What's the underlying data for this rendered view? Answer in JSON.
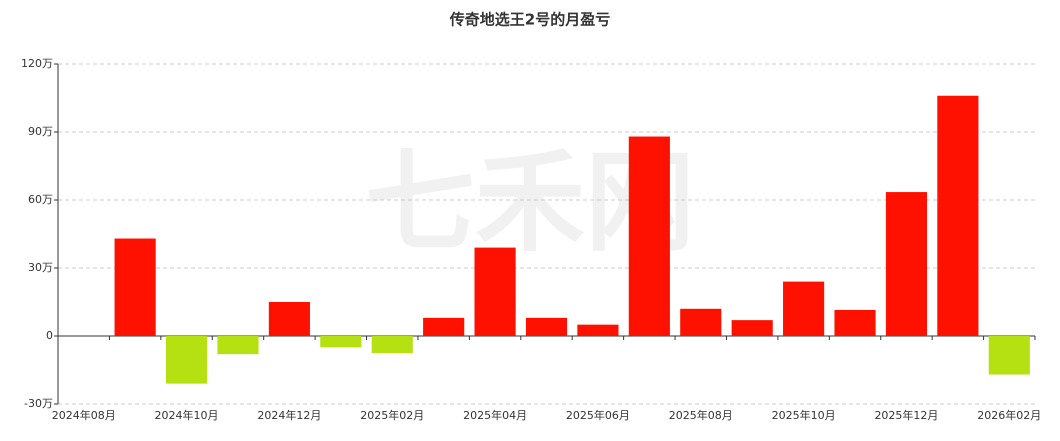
{
  "chart_data": {
    "type": "bar",
    "title": "传奇地选王2号的月盈亏",
    "watermark": "七禾网",
    "categories": [
      "2024年08月",
      null,
      "2024年10月",
      null,
      "2024年12月",
      null,
      "2025年02月",
      null,
      "2025年04月",
      null,
      "2025年06月",
      null,
      "2025年08月",
      null,
      "2025年10月",
      null,
      "2025年12月",
      null,
      "2026年02月"
    ],
    "values": [
      null,
      43,
      -21,
      -8,
      15,
      -5,
      -7.5,
      8,
      39,
      8,
      5,
      88,
      12,
      7,
      24,
      11.5,
      63.5,
      106,
      -17
    ],
    "positive_color": "#ff1100",
    "negative_color": "#b5e012",
    "ylim": [
      -30,
      120
    ],
    "yticks": [
      {
        "value": -30,
        "label": "-30万"
      },
      0,
      {
        "value": 30,
        "label": "30万"
      },
      {
        "value": 60,
        "label": "60万"
      },
      {
        "value": 90,
        "label": "90万"
      },
      {
        "value": 120,
        "label": "120万"
      }
    ],
    "grid": true
  }
}
